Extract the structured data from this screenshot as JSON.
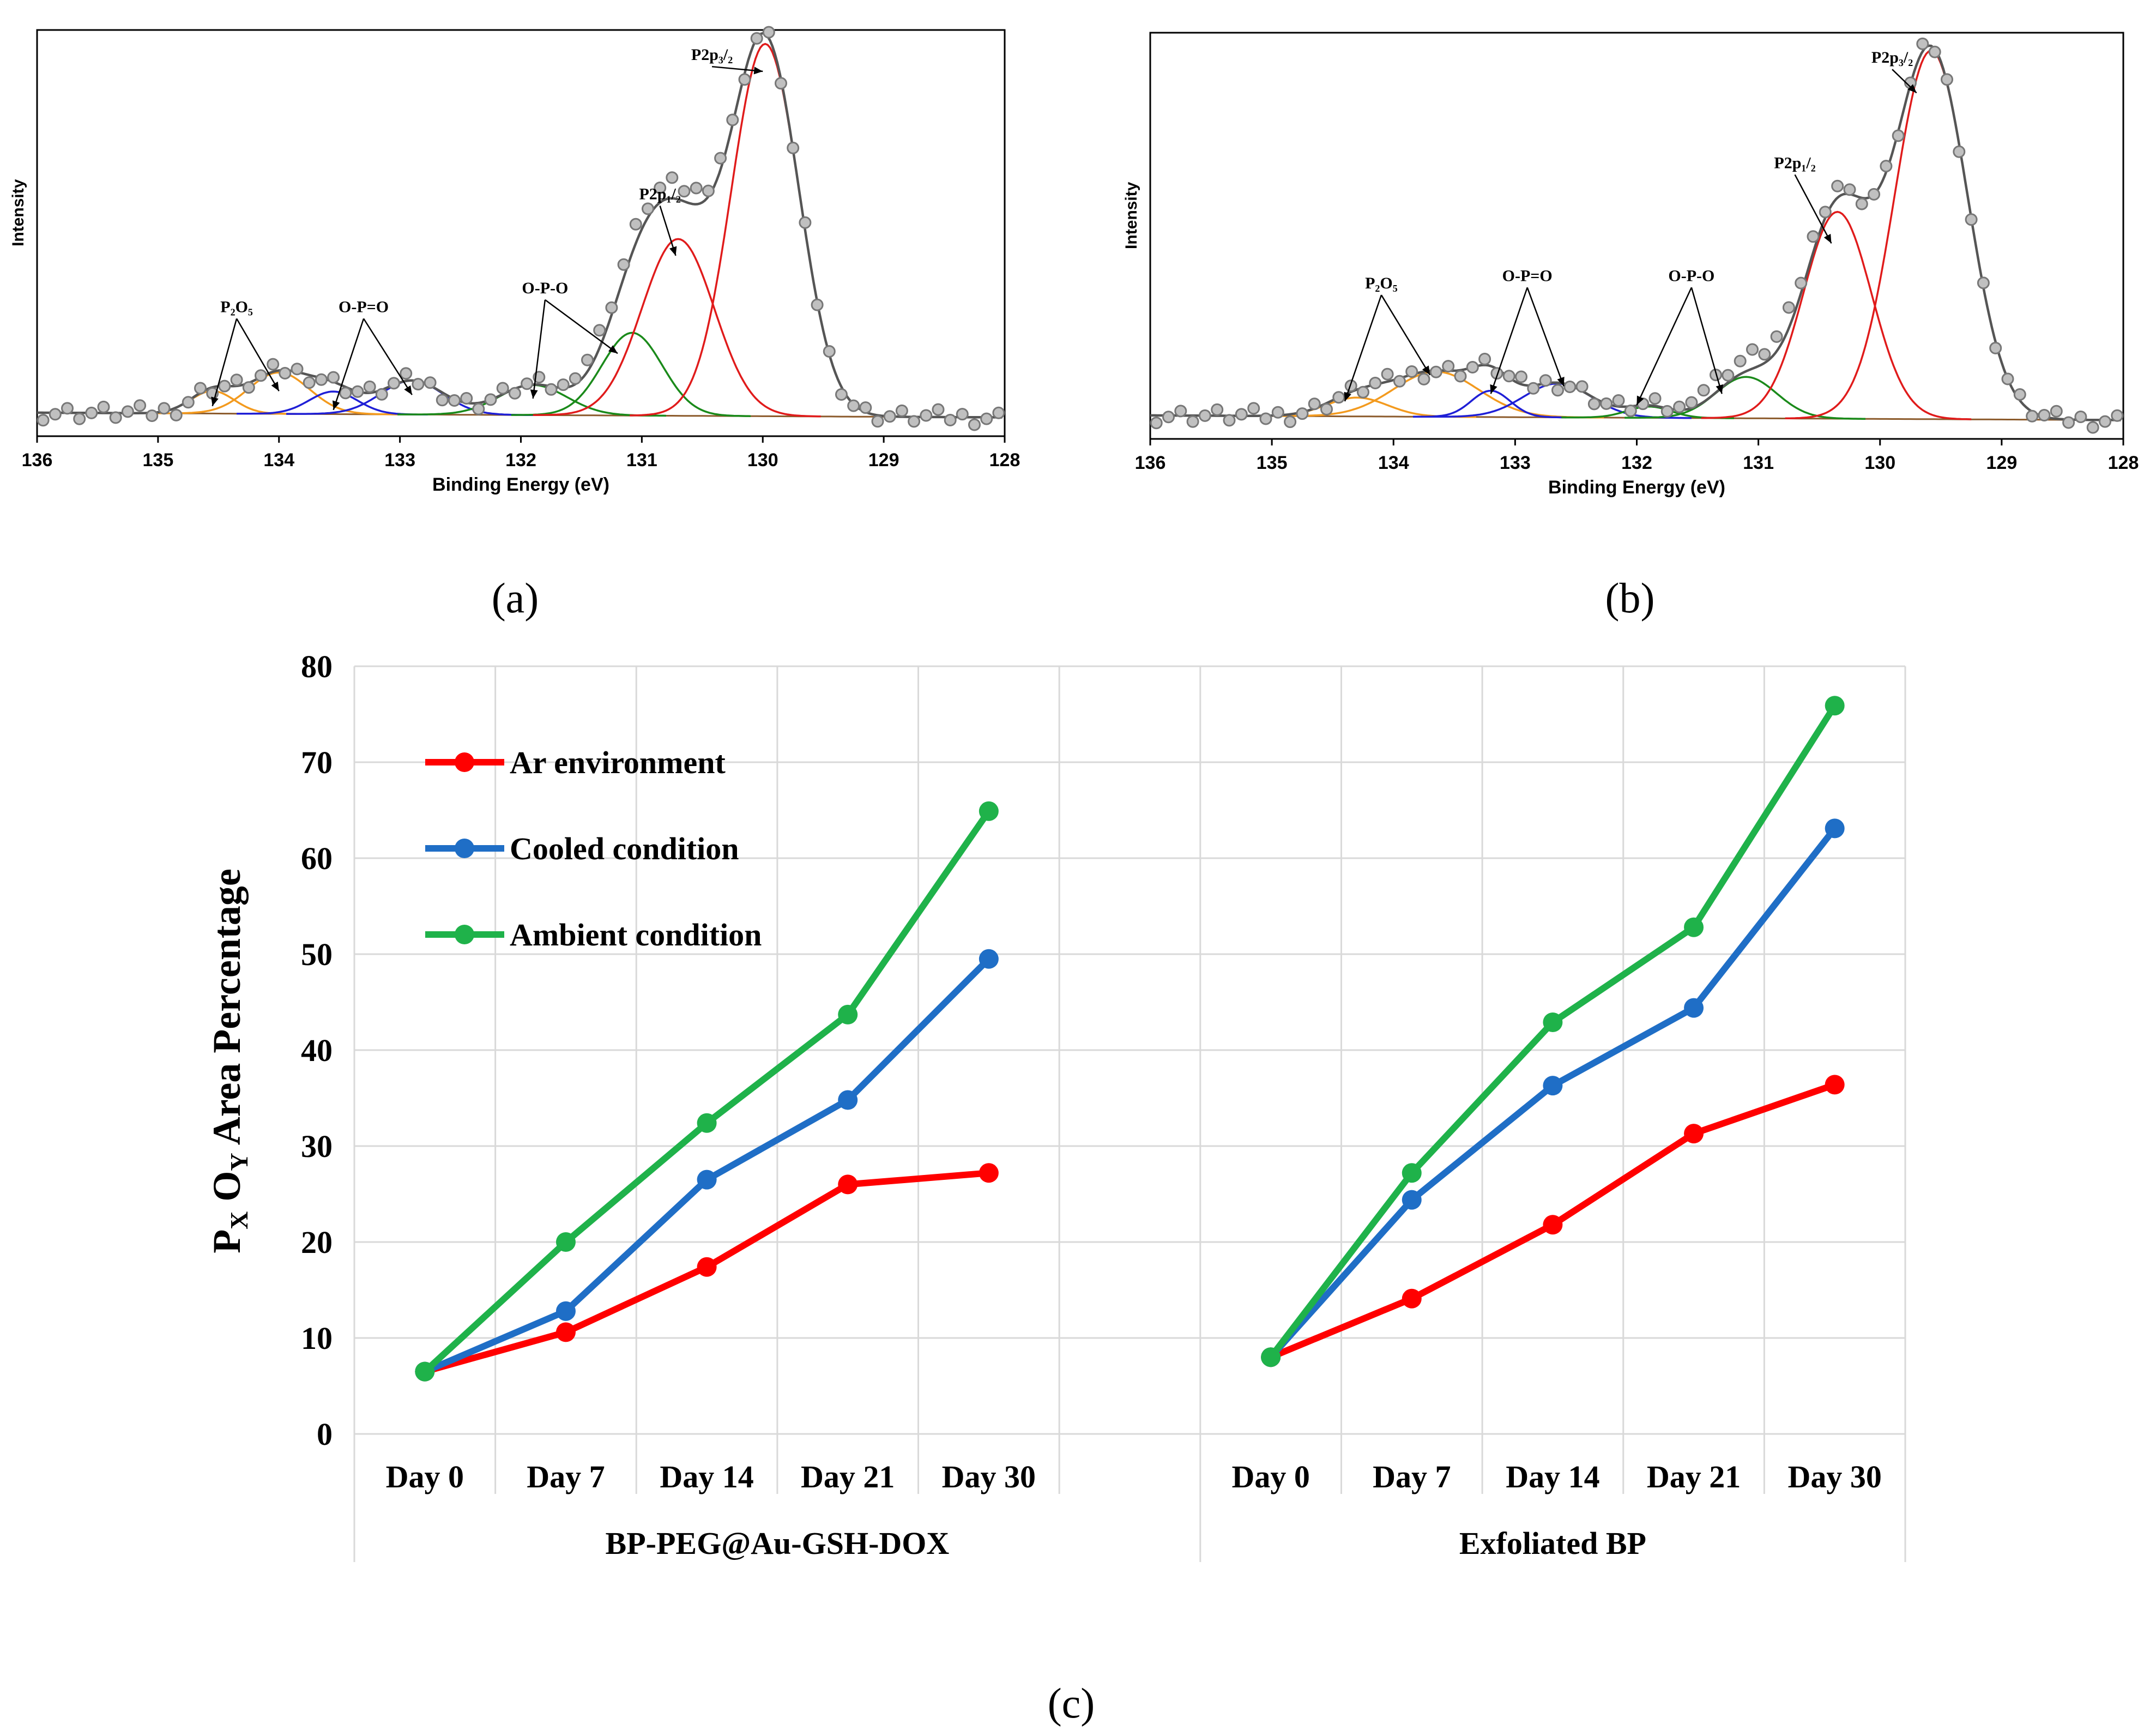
{
  "panel_labels": {
    "a": "(a)",
    "b": "(b)",
    "c": "(c)"
  },
  "chart_data": [
    {
      "type": "line",
      "panel": "a",
      "xlabel": "Binding Energy (eV)",
      "ylabel": "Intensity",
      "xlim": [
        136,
        128
      ],
      "x_reversed": true,
      "xticks": [
        "136",
        "135",
        "134",
        "133",
        "132",
        "131",
        "130",
        "129",
        "128"
      ],
      "baseline": 0.05,
      "raw_peak_height": 1.0,
      "series": [
        {
          "label": "P2O5",
          "color": "#f39a1e",
          "peaks": [
            {
              "center": 134.55,
              "height": 0.06,
              "width": 0.18
            },
            {
              "center": 134.0,
              "height": 0.11,
              "width": 0.25
            }
          ]
        },
        {
          "label": "O-P=O",
          "color": "#1f1fd6",
          "peaks": [
            {
              "center": 133.55,
              "height": 0.06,
              "width": 0.2
            },
            {
              "center": 132.9,
              "height": 0.09,
              "width": 0.26
            }
          ]
        },
        {
          "label": "O-P-O",
          "color": "#1a8a1a",
          "peaks": [
            {
              "center": 131.9,
              "height": 0.08,
              "width": 0.28
            },
            {
              "center": 131.08,
              "height": 0.22,
              "width": 0.25
            }
          ]
        },
        {
          "label": "P2p1/2",
          "color": "#e01b1b",
          "peaks": [
            {
              "center": 130.7,
              "height": 0.47,
              "width": 0.3
            }
          ]
        },
        {
          "label": "P2p3/2",
          "color": "#e01b1b",
          "peaks": [
            {
              "center": 129.98,
              "height": 0.99,
              "width": 0.28
            }
          ]
        }
      ],
      "annotations": [
        {
          "text": "P₂O₅",
          "x": 134.35,
          "y": 0.33,
          "targets": [
            [
              134.55,
              0.08
            ],
            [
              134.0,
              0.12
            ]
          ]
        },
        {
          "text": "O-P=O",
          "x": 133.3,
          "y": 0.33,
          "targets": [
            [
              133.55,
              0.07
            ],
            [
              132.9,
              0.11
            ]
          ]
        },
        {
          "text": "O-P-O",
          "x": 131.8,
          "y": 0.38,
          "targets": [
            [
              131.9,
              0.1
            ],
            [
              131.2,
              0.22
            ]
          ]
        },
        {
          "text": "P2p₁/₂",
          "x": 130.85,
          "y": 0.63,
          "targets": [
            [
              130.72,
              0.48
            ]
          ]
        },
        {
          "text": "P2p₃/₂",
          "x": 130.42,
          "y": 1.0,
          "targets": [
            [
              130.0,
              0.97
            ]
          ]
        }
      ]
    },
    {
      "type": "line",
      "panel": "b",
      "xlabel": "Binding Energy (eV)",
      "ylabel": "Intensity",
      "xlim": [
        136,
        128
      ],
      "x_reversed": true,
      "xticks": [
        "136",
        "135",
        "134",
        "133",
        "132",
        "131",
        "130",
        "129",
        "128"
      ],
      "baseline": 0.05,
      "raw_peak_height": 1.0,
      "series": [
        {
          "label": "P2O5",
          "color": "#f39a1e",
          "peaks": [
            {
              "center": 134.3,
              "height": 0.05,
              "width": 0.25
            },
            {
              "center": 133.65,
              "height": 0.12,
              "width": 0.35
            }
          ]
        },
        {
          "label": "O-P=O",
          "color": "#1f1fd6",
          "peaks": [
            {
              "center": 133.2,
              "height": 0.07,
              "width": 0.16
            },
            {
              "center": 132.65,
              "height": 0.09,
              "width": 0.28
            }
          ]
        },
        {
          "label": "O-P-O",
          "color": "#1a8a1a",
          "peaks": [
            {
              "center": 131.9,
              "height": 0.03,
              "width": 0.18
            },
            {
              "center": 131.1,
              "height": 0.11,
              "width": 0.25
            }
          ]
        },
        {
          "label": "P2p1/2",
          "color": "#e01b1b",
          "peaks": [
            {
              "center": 130.35,
              "height": 0.55,
              "width": 0.28
            }
          ]
        },
        {
          "label": "P2p3/2",
          "color": "#e01b1b",
          "peaks": [
            {
              "center": 129.58,
              "height": 0.98,
              "width": 0.3
            }
          ]
        }
      ],
      "annotations": [
        {
          "text": "P₂O₅",
          "x": 134.1,
          "y": 0.4,
          "targets": [
            [
              134.4,
              0.1
            ],
            [
              133.7,
              0.17
            ]
          ]
        },
        {
          "text": "O-P=O",
          "x": 132.9,
          "y": 0.42,
          "targets": [
            [
              133.2,
              0.12
            ],
            [
              132.6,
              0.14
            ]
          ]
        },
        {
          "text": "O-P-O",
          "x": 131.55,
          "y": 0.42,
          "targets": [
            [
              132.0,
              0.09
            ],
            [
              131.3,
              0.12
            ]
          ]
        },
        {
          "text": "P2p₁/₂",
          "x": 130.7,
          "y": 0.72,
          "targets": [
            [
              130.4,
              0.52
            ]
          ]
        },
        {
          "text": "P2p₃/₂",
          "x": 129.9,
          "y": 1.0,
          "targets": [
            [
              129.7,
              0.92
            ]
          ]
        }
      ]
    },
    {
      "type": "line",
      "panel": "c",
      "ylabel": "P_X O_Y Area Percentage",
      "ylim": [
        0,
        80
      ],
      "yticks": [
        0,
        10,
        20,
        30,
        40,
        50,
        60,
        70,
        80
      ],
      "groups": [
        "BP-PEG@Au-GSH-DOX",
        "Exfoliated BP"
      ],
      "categories": [
        "Day 0",
        "Day 7",
        "Day 14",
        "Day 21",
        "Day 30"
      ],
      "legend_position": "top-left",
      "series": [
        {
          "name": "Ar environment",
          "color": "#ff0000",
          "values": [
            [
              6.5,
              10.6,
              17.4,
              26.0,
              27.2
            ],
            [
              8.0,
              14.1,
              21.8,
              31.3,
              36.4
            ]
          ]
        },
        {
          "name": "Cooled condition",
          "color": "#1f6ec6",
          "values": [
            [
              6.5,
              12.8,
              26.5,
              34.8,
              49.5
            ],
            [
              8.0,
              24.4,
              36.3,
              44.4,
              63.1
            ]
          ]
        },
        {
          "name": "Ambient condition",
          "color": "#1fb24a",
          "values": [
            [
              6.5,
              20.0,
              32.4,
              43.7,
              64.9
            ],
            [
              8.0,
              27.2,
              42.9,
              52.8,
              75.9
            ]
          ]
        }
      ]
    }
  ]
}
